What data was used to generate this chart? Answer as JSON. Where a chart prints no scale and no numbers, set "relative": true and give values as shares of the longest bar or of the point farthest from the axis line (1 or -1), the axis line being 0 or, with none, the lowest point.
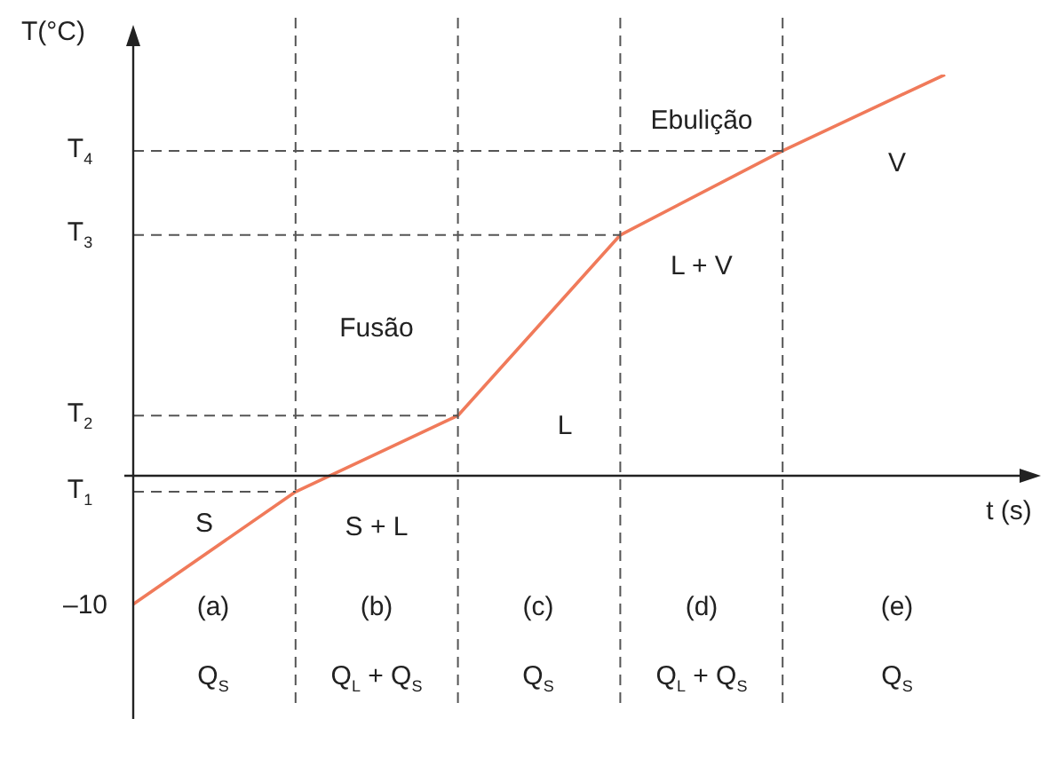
{
  "chart_data": {
    "type": "line",
    "relative": true,
    "xlabel": "t (s)",
    "ylabel": "T(°C)",
    "categories": [
      null,
      null,
      null,
      null,
      null,
      null
    ],
    "series": [
      {
        "color": "#f07a5a",
        "values": [
          -0.32,
          -0.04,
          0.15,
          0.6,
          0.81,
          1
        ]
      }
    ],
    "ref_lines": [
      {
        "axis": "y",
        "value": -0.04,
        "label": "T$_{1}$",
        "line_style": "dashed"
      },
      {
        "axis": "y",
        "value": 0.15,
        "label": "T$_{2}$",
        "line_style": "dashed"
      },
      {
        "axis": "y",
        "value": 0.6,
        "label": "T$_{3}$",
        "line_style": "dashed"
      },
      {
        "axis": "y",
        "value": 0.81,
        "label": "T$_{4}$",
        "line_style": "dashed"
      }
    ],
    "annotations": [
      "–10",
      "Fusão",
      "Ebulição",
      "S",
      "S + L",
      "L",
      "L + V",
      "V",
      "(a)",
      "(b)",
      "(c)",
      "(d)",
      "(e)",
      "Q$_{S}$",
      "Q$_{L}$ + Q$_{S}$",
      "Q$_{S}$",
      "Q$_{L}$ + Q$_{S}$",
      "Q$_{S}$"
    ],
    "grid": "x",
    "legend": false,
    "marker": "none",
    "line_style": "solid"
  }
}
